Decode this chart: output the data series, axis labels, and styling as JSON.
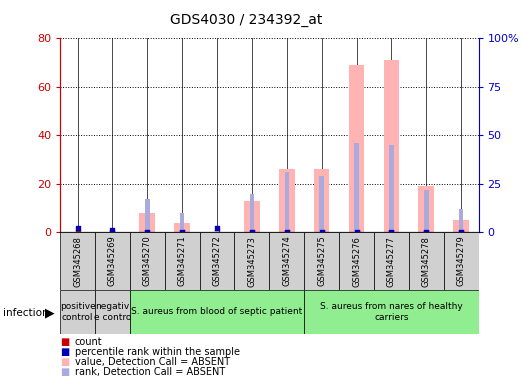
{
  "title": "GDS4030 / 234392_at",
  "samples": [
    "GSM345268",
    "GSM345269",
    "GSM345270",
    "GSM345271",
    "GSM345272",
    "GSM345273",
    "GSM345274",
    "GSM345275",
    "GSM345276",
    "GSM345277",
    "GSM345278",
    "GSM345279"
  ],
  "count": [
    0,
    0,
    0,
    0,
    0,
    0,
    0,
    0,
    0,
    0,
    0,
    0
  ],
  "percentile_rank": [
    2,
    1,
    0,
    0,
    2,
    0,
    0,
    0,
    0,
    0,
    0,
    0
  ],
  "value_absent": [
    0,
    0,
    8,
    4,
    0,
    13,
    26,
    26,
    69,
    71,
    19,
    5
  ],
  "rank_absent": [
    0,
    0,
    17,
    10,
    3,
    20,
    31,
    29,
    46,
    45,
    22,
    12
  ],
  "ylim_left": [
    0,
    80
  ],
  "ylim_right": [
    0,
    100
  ],
  "yticks_left": [
    0,
    20,
    40,
    60,
    80
  ],
  "yticks_right": [
    0,
    25,
    50,
    75,
    100
  ],
  "left_axis_color": "#cc0000",
  "right_axis_color": "#0000cc",
  "count_color": "#cc0000",
  "percentile_color": "#0000bb",
  "value_absent_color": "#ffb3b3",
  "rank_absent_color": "#aaaadd",
  "bar_bg_color": "#d0d0d0",
  "groups": [
    {
      "label": "positive\ncontrol",
      "start": 0,
      "end": 1,
      "color": "#d0d0d0"
    },
    {
      "label": "negativ\ne contro",
      "start": 1,
      "end": 2,
      "color": "#d0d0d0"
    },
    {
      "label": "S. aureus from blood of septic patient",
      "start": 2,
      "end": 7,
      "color": "#90ee90"
    },
    {
      "label": "S. aureus from nares of healthy\ncarriers",
      "start": 7,
      "end": 12,
      "color": "#90ee90"
    }
  ],
  "infection_label": "infection",
  "legend_items": [
    {
      "label": "count",
      "color": "#cc0000"
    },
    {
      "label": "percentile rank within the sample",
      "color": "#0000bb"
    },
    {
      "label": "value, Detection Call = ABSENT",
      "color": "#ffb3b3"
    },
    {
      "label": "rank, Detection Call = ABSENT",
      "color": "#aaaadd"
    }
  ],
  "figsize": [
    5.23,
    3.84
  ],
  "dpi": 100
}
